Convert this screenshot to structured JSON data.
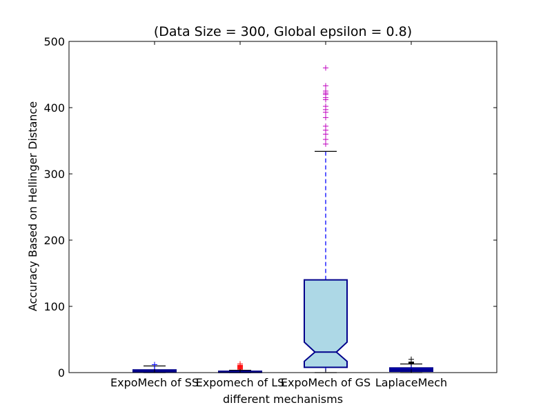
{
  "chart_data": {
    "type": "box",
    "title": "(Data Size = 300, Global epsilon = 0.8)",
    "xlabel": "different mechanisms",
    "ylabel": "Accuracy Based on Hellinger Distance",
    "ylim": [
      0,
      500
    ],
    "yticks": [
      0,
      100,
      200,
      300,
      400,
      500
    ],
    "notched": true,
    "grid": false,
    "categories": [
      "ExpoMech of SS",
      "Expomech of LS",
      "ExpoMech of GS",
      "LaplaceMech"
    ],
    "boxes": [
      {
        "q1": 0.5,
        "median": 2,
        "q3": 4,
        "whisker_low": 0,
        "whisker_high": 10,
        "fill": "#0000cd",
        "flier_color": "#0000ff",
        "fliers": [
          12
        ]
      },
      {
        "q1": 0.3,
        "median": 1,
        "q3": 2,
        "whisker_low": 0,
        "whisker_high": 3.5,
        "fill": "#0000cd",
        "flier_color": "#ff0000",
        "fliers": [
          5,
          6,
          7,
          8,
          9,
          10,
          11,
          13
        ]
      },
      {
        "q1": 8,
        "median": 31,
        "q3": 140,
        "notch_low": 17,
        "notch_high": 46,
        "whisker_low": 0,
        "whisker_high": 334,
        "fill": "#add8e6",
        "flier_color": "#bf00bf",
        "fliers": [
          345,
          352,
          360,
          366,
          372,
          385,
          393,
          397,
          402,
          412,
          415,
          420,
          422,
          425,
          433,
          460
        ]
      },
      {
        "q1": 2,
        "median": 4,
        "q3": 7,
        "whisker_low": 0,
        "whisker_high": 13,
        "fill": "#0000cd",
        "flier_color": "#000000",
        "fliers": [
          14,
          14.5,
          15,
          15.5,
          16,
          20
        ]
      }
    ],
    "colors": {
      "box_edge": "#00008b",
      "whisker": "#0000ff",
      "cap": "#000000",
      "axes": "#000000"
    }
  }
}
